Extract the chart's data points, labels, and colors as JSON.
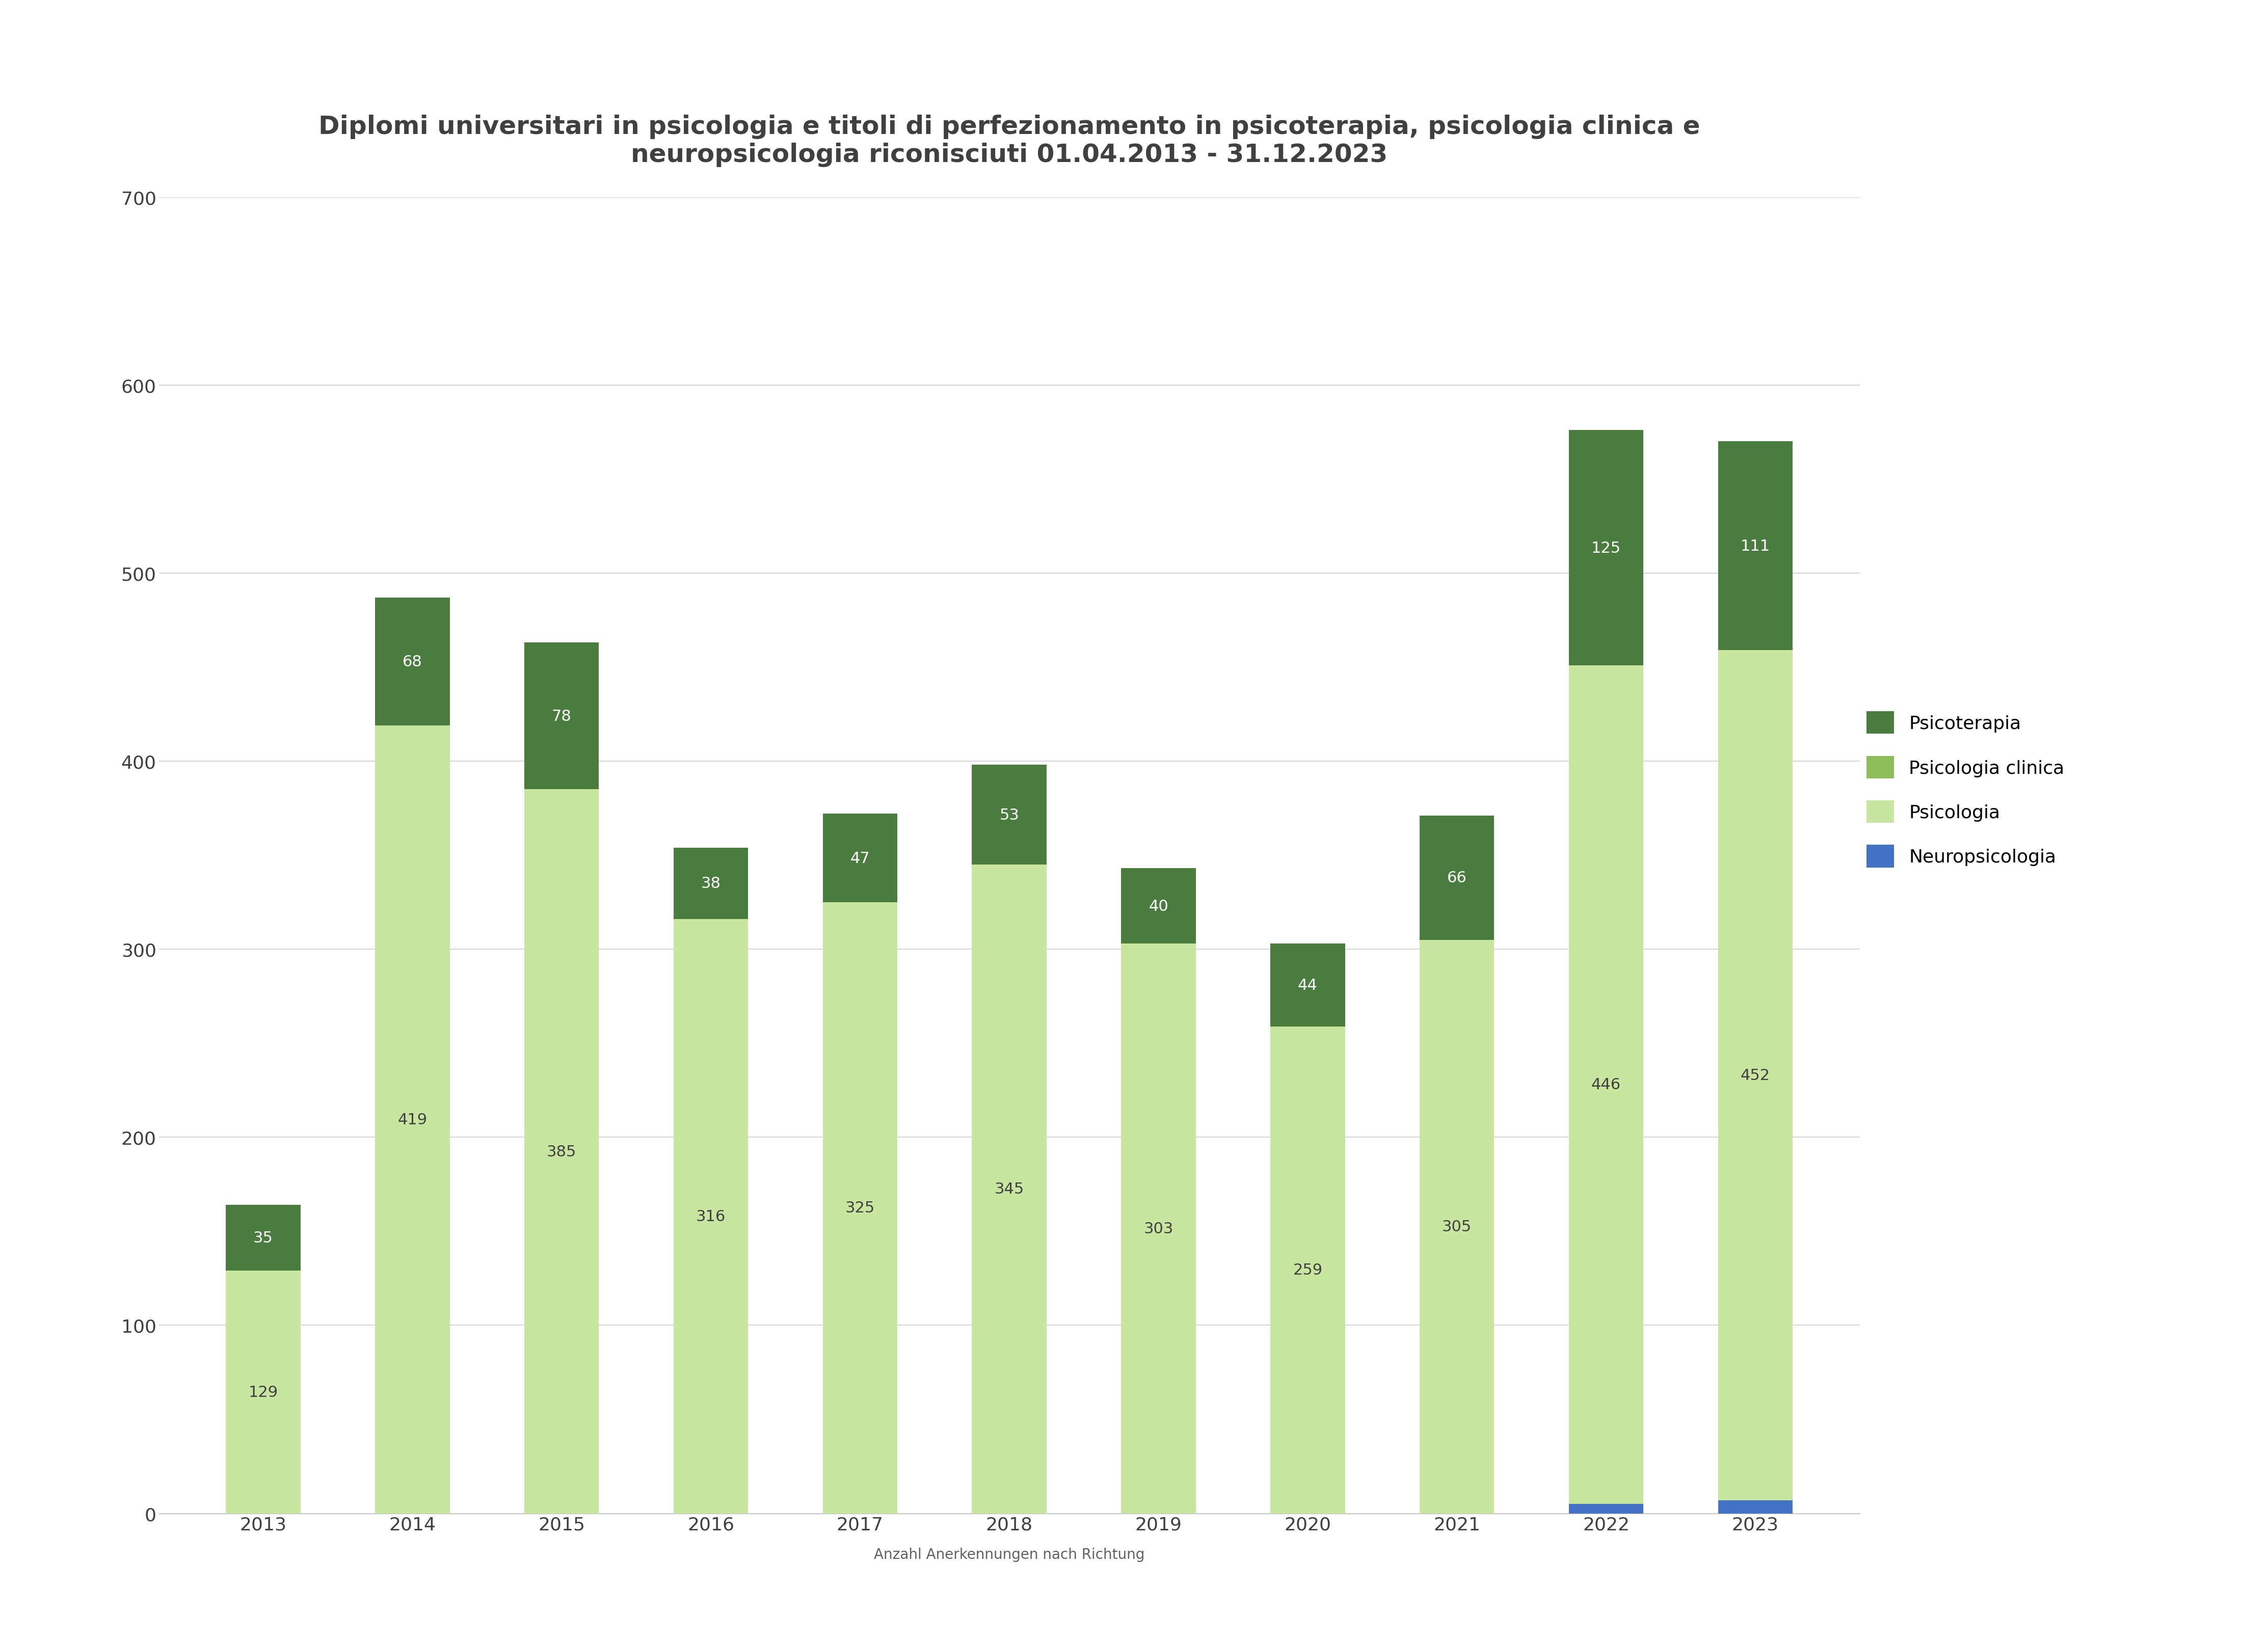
{
  "title": "Diplomi universitari in psicologia e titoli di perfezionamento in psicoterapia, psicologia clinica e\nneuropsicologia riconisciuti 01.04.2013 - 31.12.2023",
  "xlabel": "Anzahl Anerkennungen nach Richtung",
  "years": [
    "2013",
    "2014",
    "2015",
    "2016",
    "2017",
    "2018",
    "2019",
    "2020",
    "2021",
    "2022",
    "2023"
  ],
  "psicologia": [
    129,
    419,
    385,
    316,
    325,
    345,
    303,
    259,
    305,
    446,
    452
  ],
  "psicologia_clinica": [
    0,
    0,
    0,
    0,
    0,
    0,
    0,
    0,
    0,
    0,
    0
  ],
  "psicoterapia": [
    35,
    68,
    78,
    38,
    47,
    53,
    40,
    44,
    66,
    125,
    111
  ],
  "neuropsicologia": [
    0,
    0,
    0,
    0,
    0,
    0,
    0,
    0,
    0,
    5,
    7
  ],
  "color_psicoterapia": "#4a7c3f",
  "color_psicologia_clinica": "#8fbc5a",
  "color_psicologia": "#c8e6a0",
  "color_neuropsicologia": "#4472c4",
  "ylim": [
    0,
    700
  ],
  "yticks": [
    0,
    100,
    200,
    300,
    400,
    500,
    600,
    700
  ],
  "background_color": "#ffffff",
  "title_color": "#404040",
  "title_fontsize": 36,
  "tick_fontsize": 26,
  "label_fontsize": 20,
  "legend_fontsize": 26,
  "bar_label_fontsize": 22,
  "bar_width": 0.5
}
